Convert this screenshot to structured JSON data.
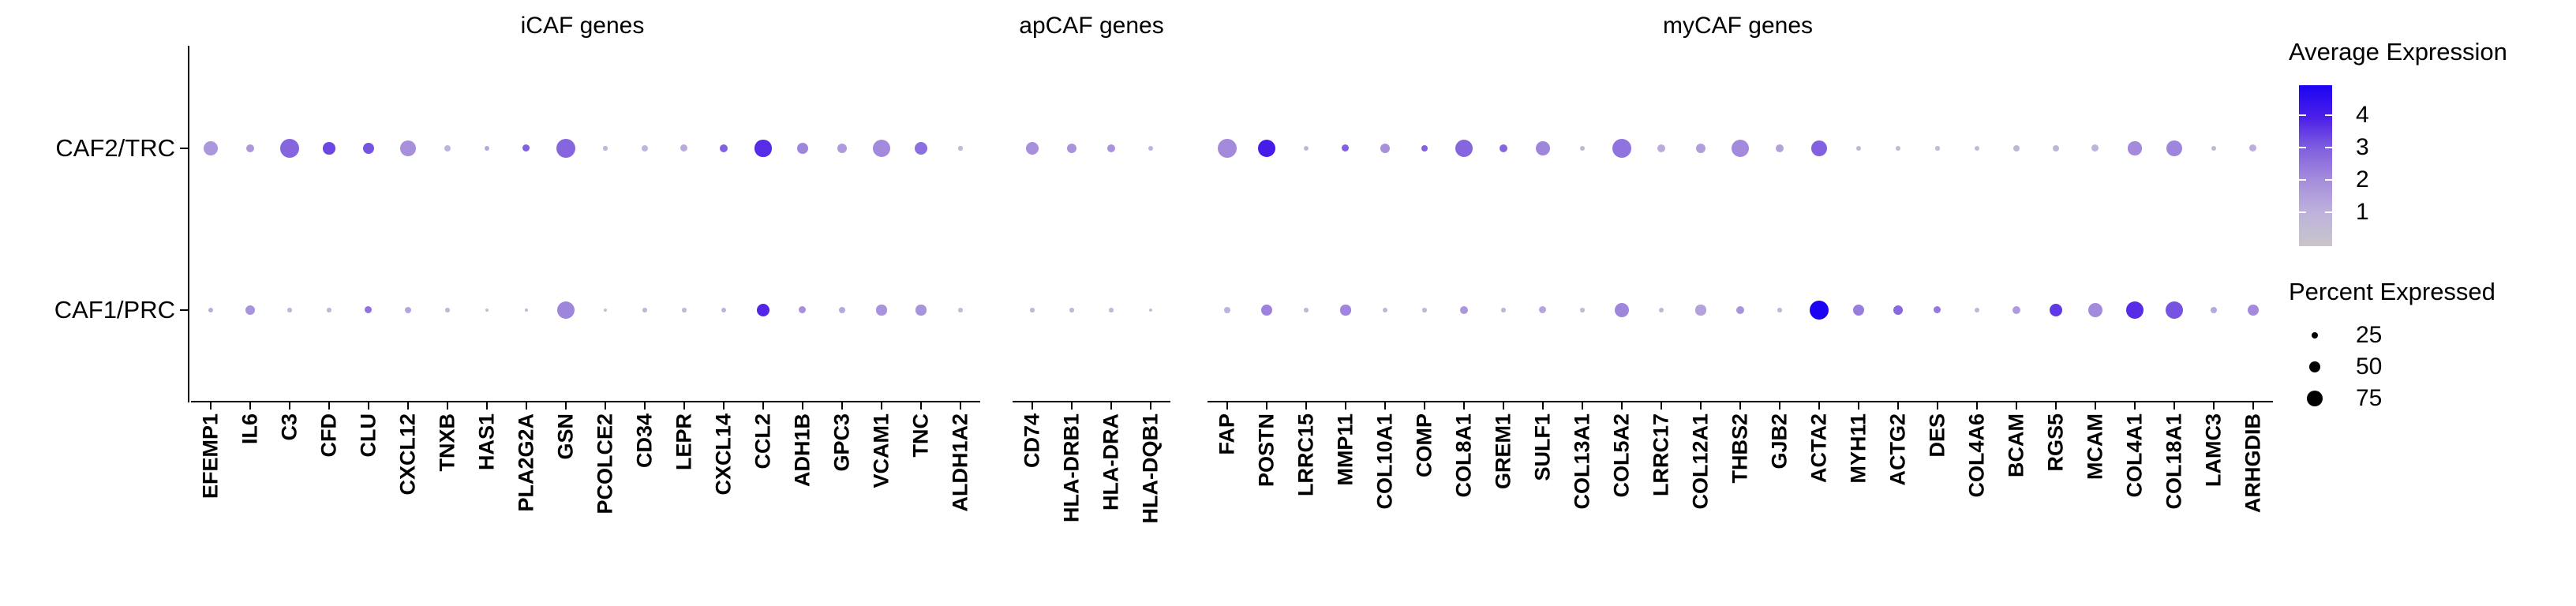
{
  "chart_data": {
    "type": "dotplot",
    "title": "",
    "rows": [
      "CAF2/TRC",
      "CAF1/PRC"
    ],
    "groups": [
      {
        "label": "iCAF genes",
        "genes": [
          "EFEMP1",
          "IL6",
          "C3",
          "CFD",
          "CLU",
          "CXCL12",
          "TNXB",
          "HAS1",
          "PLA2G2A",
          "GSN",
          "PCOLCE2",
          "CD34",
          "LEPR",
          "CXCL14",
          "CCL2",
          "ADH1B",
          "GPC3",
          "VCAM1",
          "TNC",
          "ALDH1A2"
        ],
        "series": [
          {
            "row": "CAF2/TRC",
            "percent_expressed": [
              66,
              32,
              92,
              55,
              49,
              75,
              24,
              15,
              28,
              92,
              12,
              24,
              28,
              36,
              79,
              53,
              41,
              83,
              58,
              12
            ],
            "avg_expression": [
              1.8,
              1.8,
              2.9,
              3.4,
              3.2,
              2.0,
              0.9,
              1.3,
              3.0,
              2.9,
              0.7,
              0.8,
              1.2,
              3.0,
              3.8,
              2.2,
              1.7,
              2.1,
              2.7,
              0.6
            ]
          },
          {
            "row": "CAF1/PRC",
            "percent_expressed": [
              15,
              41,
              12,
              12,
              28,
              24,
              12,
              7,
              7,
              83,
              7,
              12,
              12,
              15,
              58,
              28,
              24,
              45,
              45,
              12
            ],
            "avg_expression": [
              1.2,
              1.9,
              0.8,
              0.8,
              2.6,
              1.4,
              0.6,
              0.5,
              0.7,
              2.2,
              0.5,
              0.6,
              0.6,
              1.0,
              3.9,
              2.0,
              1.3,
              1.9,
              1.9,
              0.5
            ]
          }
        ]
      },
      {
        "label": "apCAF genes",
        "genes": [
          "CD74",
          "HLA-DRB1",
          "HLA-DRA",
          "HLA-DQB1"
        ],
        "series": [
          {
            "row": "CAF2/TRC",
            "percent_expressed": [
              58,
              41,
              32,
              15
            ],
            "avg_expression": [
              2.0,
              1.9,
              1.9,
              1.0
            ]
          },
          {
            "row": "CAF1/PRC",
            "percent_expressed": [
              12,
              12,
              12,
              7
            ],
            "avg_expression": [
              0.7,
              0.6,
              0.6,
              0.5
            ]
          }
        ]
      },
      {
        "label": "myCAF genes",
        "genes": [
          "FAP",
          "POSTN",
          "LRRC15",
          "MMP11",
          "COL10A1",
          "COMP",
          "COL8A1",
          "GREM1",
          "SULF1",
          "COL13A1",
          "COL5A2",
          "LRRC17",
          "COL12A1",
          "THBS2",
          "GJB2",
          "ACTA2",
          "MYH11",
          "ACTG2",
          "DES",
          "COL4A6",
          "BCAM",
          "RGS5",
          "MCAM",
          "COL4A1",
          "COL18A1",
          "LAMC3",
          "ARHGDIB"
        ],
        "series": [
          {
            "row": "CAF2/TRC",
            "percent_expressed": [
              92,
              83,
              19,
              28,
              41,
              24,
              83,
              36,
              70,
              19,
              92,
              32,
              41,
              83,
              32,
              75,
              15,
              15,
              12,
              15,
              24,
              24,
              28,
              62,
              75,
              15,
              28
            ],
            "avg_expression": [
              2.1,
              4.1,
              0.8,
              3.0,
              2.0,
              3.0,
              2.9,
              2.9,
              2.2,
              0.7,
              2.6,
              1.2,
              1.6,
              2.1,
              1.5,
              3.0,
              0.7,
              0.6,
              0.5,
              0.6,
              0.8,
              0.8,
              1.0,
              2.1,
              2.2,
              0.7,
              1.1
            ]
          },
          {
            "row": "CAF1/PRC",
            "percent_expressed": [
              24,
              49,
              12,
              45,
              15,
              12,
              36,
              12,
              28,
              12,
              66,
              15,
              45,
              36,
              12,
              92,
              49,
              41,
              28,
              15,
              36,
              58,
              66,
              83,
              83,
              24,
              49
            ],
            "avg_expression": [
              1.0,
              2.3,
              0.6,
              2.2,
              0.9,
              0.7,
              1.8,
              0.8,
              1.4,
              0.5,
              2.2,
              0.8,
              1.5,
              1.9,
              0.6,
              5.0,
              2.4,
              2.8,
              2.5,
              0.9,
              1.7,
              3.6,
              2.1,
              3.8,
              3.2,
              1.3,
              2.1
            ]
          }
        ]
      }
    ],
    "legend_avg": {
      "title": "Average Expression",
      "tick_labels": [
        "4",
        "3",
        "2",
        "1"
      ],
      "value_range": [
        0,
        5
      ]
    },
    "legend_pct": {
      "title": "Percent Expressed",
      "items": [
        "25",
        "50",
        "75"
      ]
    }
  },
  "colors": {
    "gradient_stops": [
      "#C9C5C9",
      "#BEB3DC",
      "#A78FDC",
      "#8161DF",
      "#4C1FE8",
      "#1C04F2"
    ],
    "axis": "#000000",
    "legend_dot": "#000000"
  }
}
